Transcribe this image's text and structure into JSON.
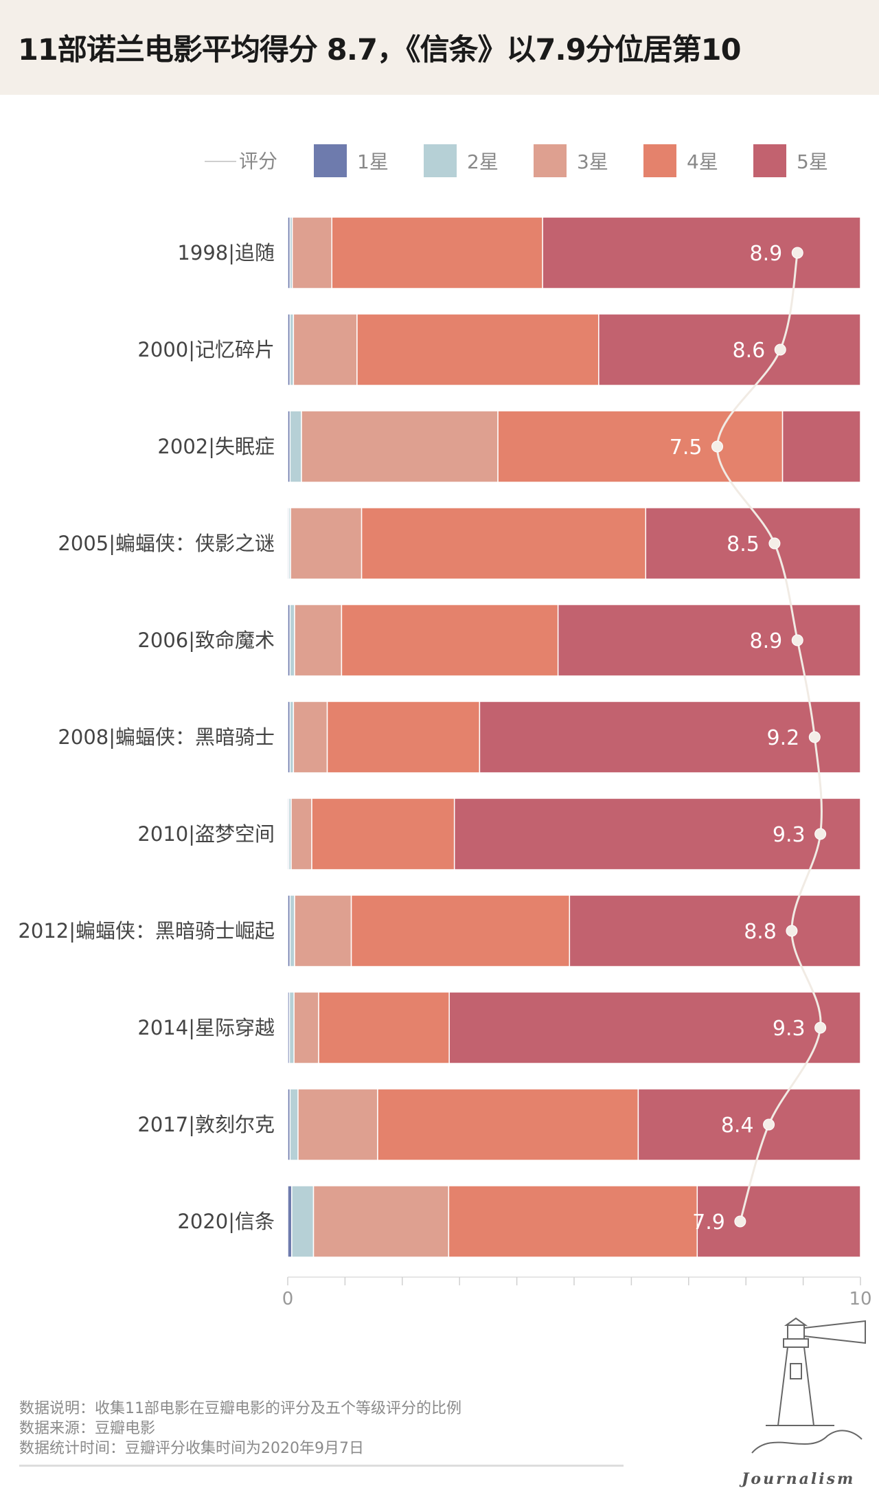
{
  "title": "11部诺兰电影平均得分 8.7，《信条》以7.9分位居第10",
  "legend": {
    "line_label": "评分",
    "items": [
      {
        "label": "1星",
        "color": "#6e7bad"
      },
      {
        "label": "2星",
        "color": "#b6d0d6"
      },
      {
        "label": "3星",
        "color": "#dea090"
      },
      {
        "label": "4星",
        "color": "#e4826c"
      },
      {
        "label": "5星",
        "color": "#c2626f"
      }
    ]
  },
  "chart_data": {
    "type": "bar",
    "stacked": true,
    "orientation": "horizontal",
    "categories": [
      "1998|追随",
      "2000|记忆碎片",
      "2002|失眠症",
      "2005|蝙蝠侠：侠影之谜",
      "2006|致命魔术",
      "2008|蝙蝠侠：黑暗骑士",
      "2010|盗梦空间",
      "2012|蝙蝠侠：黑暗骑士崛起",
      "2014|星际穿越",
      "2017|敦刻尔克",
      "2020|信条"
    ],
    "series": [
      {
        "name": "1星",
        "values": [
          0.04,
          0.04,
          0.04,
          0.02,
          0.04,
          0.04,
          0.02,
          0.04,
          0.03,
          0.04,
          0.07
        ]
      },
      {
        "name": "2星",
        "values": [
          0.04,
          0.06,
          0.2,
          0.03,
          0.08,
          0.06,
          0.04,
          0.08,
          0.08,
          0.14,
          0.38
        ]
      },
      {
        "name": "3星",
        "values": [
          0.69,
          1.11,
          3.43,
          1.24,
          0.82,
          0.59,
          0.36,
          0.99,
          0.43,
          1.39,
          2.36
        ]
      },
      {
        "name": "4星",
        "values": [
          3.68,
          4.22,
          4.97,
          4.96,
          3.78,
          2.66,
          2.49,
          3.81,
          2.28,
          4.55,
          4.34
        ]
      },
      {
        "name": "5星",
        "values": [
          5.55,
          4.57,
          1.36,
          3.75,
          5.28,
          6.65,
          7.09,
          5.08,
          7.18,
          3.88,
          2.85
        ]
      }
    ],
    "line_series": {
      "name": "评分",
      "values": [
        8.9,
        8.6,
        7.5,
        8.5,
        8.9,
        9.2,
        9.3,
        8.8,
        9.3,
        8.4,
        7.9
      ]
    },
    "xlim": [
      0,
      10
    ],
    "xticks": [
      "0",
      "10"
    ],
    "grid": false,
    "legend_position": "top"
  },
  "footer": {
    "note": "数据说明：收集11部电影在豆瓣电影的评分及五个等级评分的比例",
    "source": "数据来源：豆瓣电影",
    "time": "数据统计时间：豆瓣评分收集时间为2020年9月7日"
  },
  "logo": {
    "text": "Journalism"
  }
}
